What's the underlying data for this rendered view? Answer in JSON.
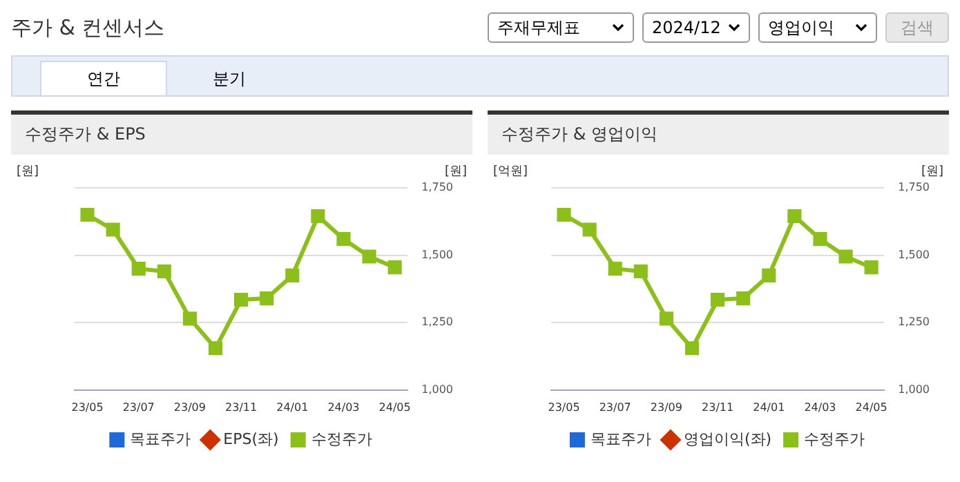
{
  "chart_data": [
    {
      "type": "line",
      "title": "수정주가 & EPS",
      "annotations": [
        "주가 & 컨센서스",
        "주재무제표",
        "2024/12",
        "영업이익",
        "검색",
        "연간",
        "분기"
      ],
      "ylabel": "[원]",
      "y2label": "[원]",
      "categories": [
        "23/05",
        null,
        "23/07",
        null,
        "23/09",
        null,
        "23/11",
        null,
        "24/01",
        null,
        "24/03",
        null,
        "24/05"
      ],
      "series": [
        {
          "name": "목표주가",
          "marker": "square",
          "color": "#1f6ad8",
          "axis": "y2",
          "values": [
            null,
            null,
            null,
            null,
            null,
            null,
            null,
            null,
            null,
            null,
            null,
            null,
            null
          ]
        },
        {
          "name": "EPS(좌)",
          "marker": "diamond",
          "color": "#cc3300",
          "axis": "y",
          "values": [
            null,
            null,
            null,
            null,
            null,
            null,
            null,
            null,
            null,
            null,
            null,
            null,
            null
          ]
        },
        {
          "name": "수정주가",
          "marker": "square",
          "color": "#8cbf1a",
          "axis": "y2",
          "values": [
            1650,
            1595,
            1450,
            1440,
            1265,
            1155,
            1335,
            1340,
            1425,
            1645,
            1560,
            1495,
            1455
          ]
        }
      ],
      "y2lim": [
        1000,
        1750
      ],
      "y2ticks": [
        {
          "value": 1000,
          "label": "1,000"
        },
        {
          "value": 1250,
          "label": "1,250"
        },
        {
          "value": 1500,
          "label": "1,500"
        },
        {
          "value": 1750,
          "label": "1,750"
        }
      ],
      "grid": "y",
      "legend": "bottom"
    },
    {
      "type": "line",
      "title": "수정주가 & 영업이익",
      "ylabel": "[억원]",
      "y2label": "[원]",
      "categories": [
        "23/05",
        null,
        "23/07",
        null,
        "23/09",
        null,
        "23/11",
        null,
        "24/01",
        null,
        "24/03",
        null,
        "24/05"
      ],
      "series": [
        {
          "name": "목표주가",
          "marker": "square",
          "color": "#1f6ad8",
          "axis": "y2",
          "values": [
            null,
            null,
            null,
            null,
            null,
            null,
            null,
            null,
            null,
            null,
            null,
            null,
            null
          ]
        },
        {
          "name": "영업이익(좌)",
          "marker": "diamond",
          "color": "#cc3300",
          "axis": "y",
          "values": [
            null,
            null,
            null,
            null,
            null,
            null,
            null,
            null,
            null,
            null,
            null,
            null,
            null
          ]
        },
        {
          "name": "수정주가",
          "marker": "square",
          "color": "#8cbf1a",
          "axis": "y2",
          "values": [
            1650,
            1595,
            1450,
            1440,
            1265,
            1155,
            1335,
            1340,
            1425,
            1645,
            1560,
            1495,
            1455
          ]
        }
      ],
      "y2lim": [
        1000,
        1750
      ],
      "y2ticks": [
        {
          "value": 1000,
          "label": "1,000"
        },
        {
          "value": 1250,
          "label": "1,250"
        },
        {
          "value": 1500,
          "label": "1,500"
        },
        {
          "value": 1750,
          "label": "1,750"
        }
      ],
      "grid": "y",
      "legend": "bottom"
    }
  ]
}
